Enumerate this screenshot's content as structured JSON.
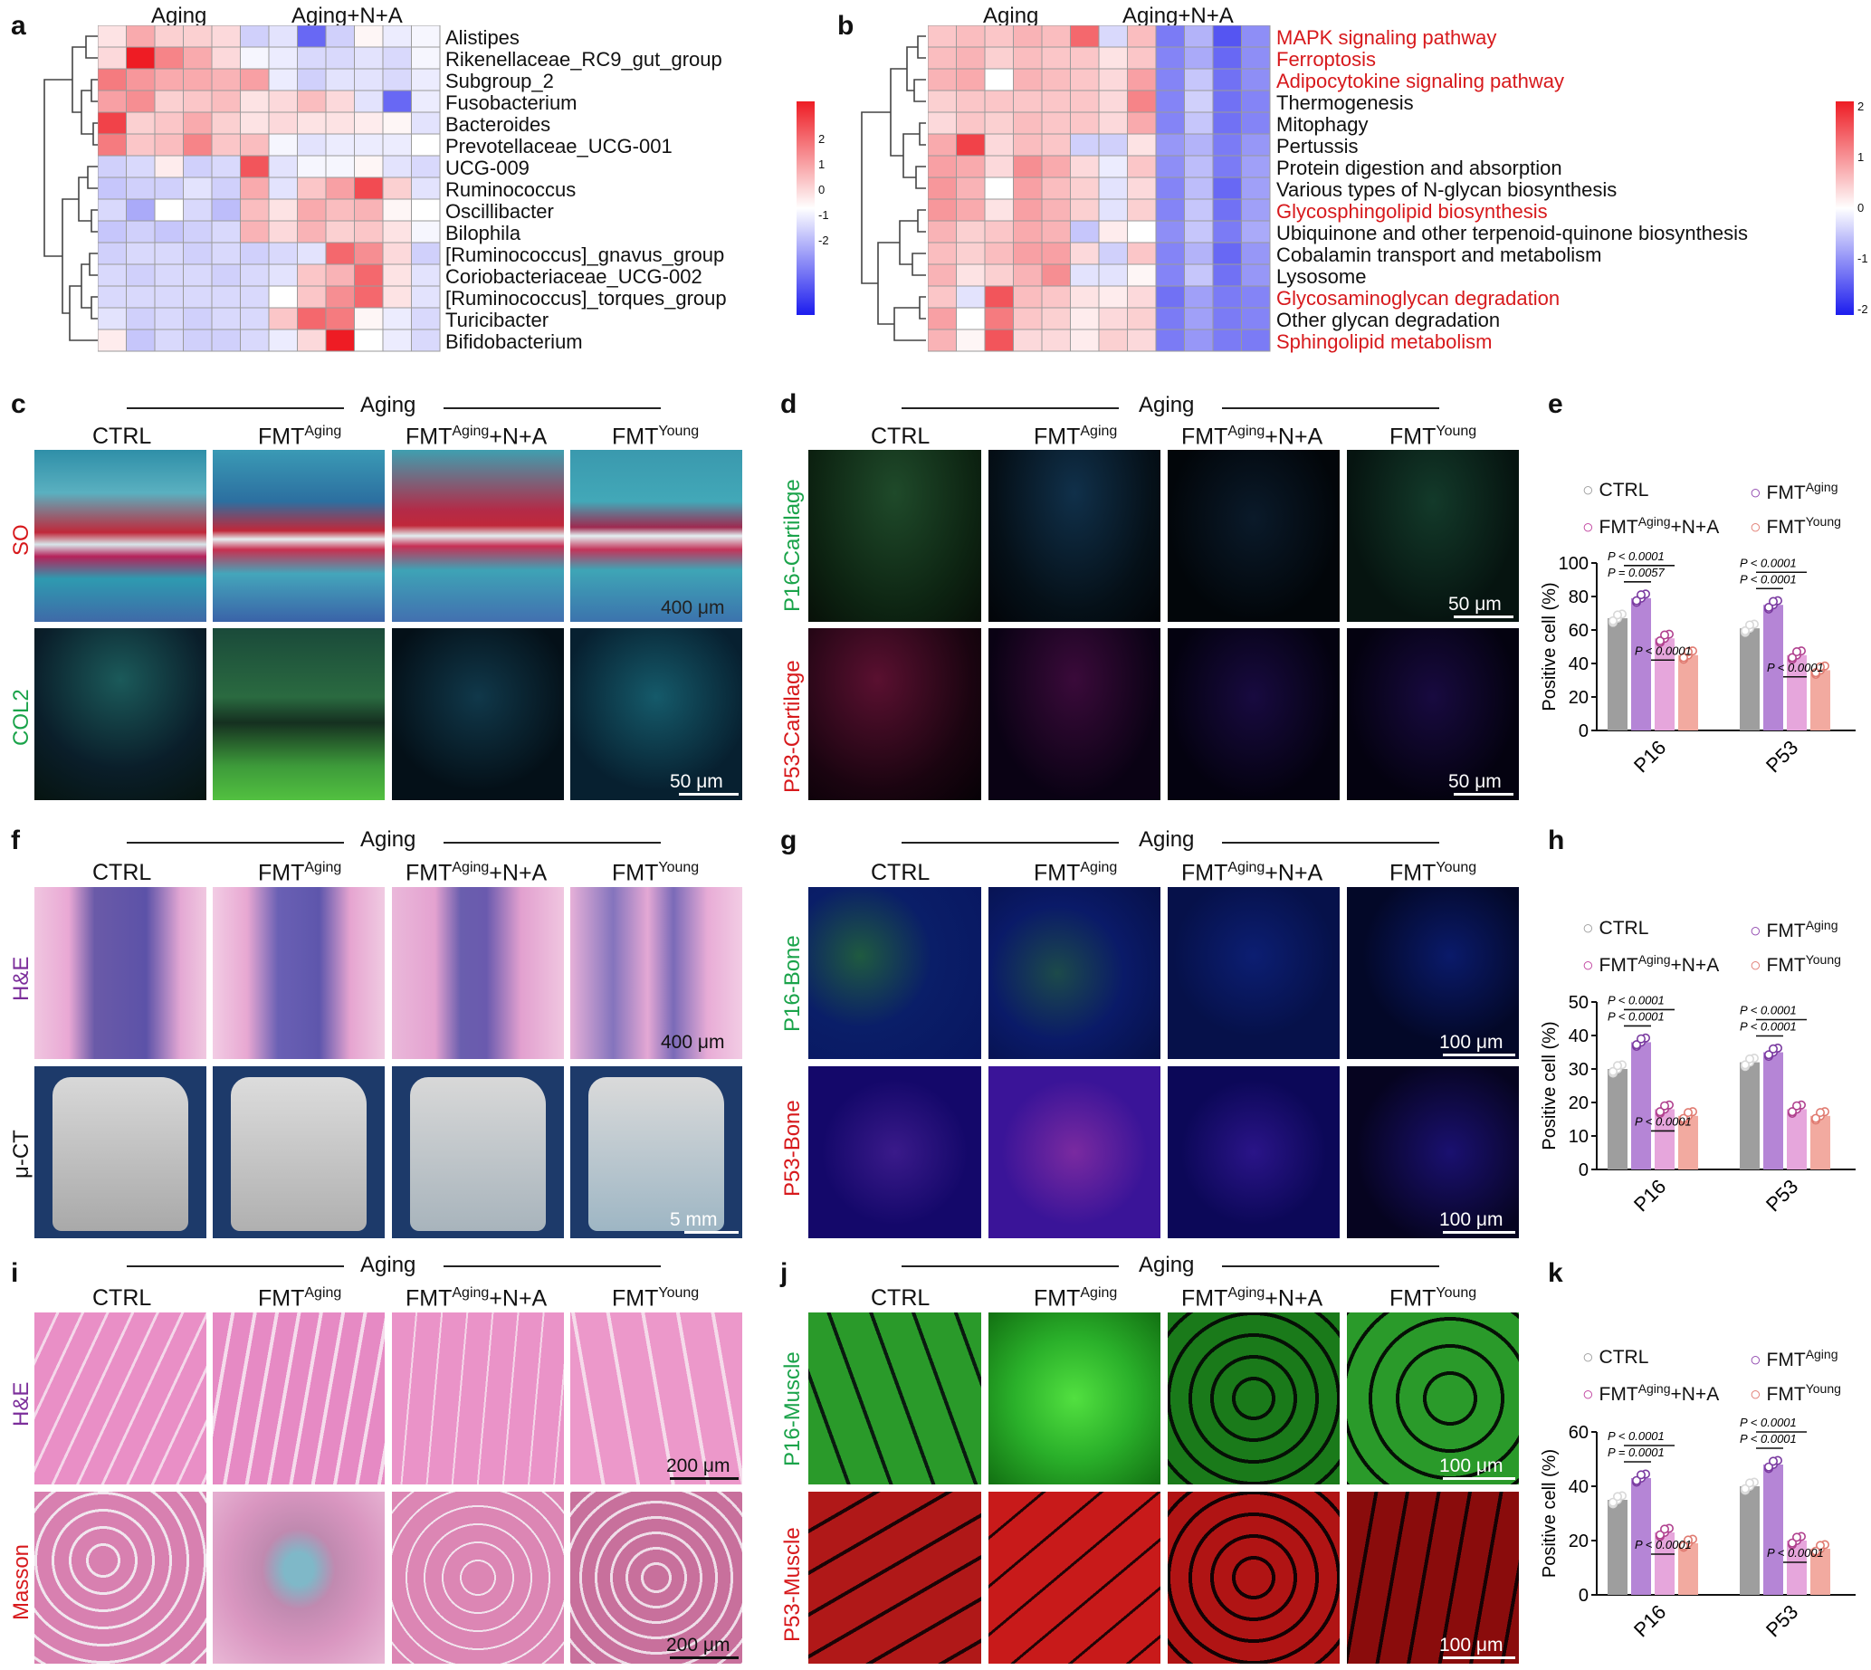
{
  "panel_labels": [
    "a",
    "b",
    "c",
    "d",
    "e",
    "f",
    "g",
    "h",
    "i",
    "j",
    "k"
  ],
  "heatmap_a": {
    "groups": [
      "Aging",
      "Aging+N+A"
    ],
    "rows": [
      "Alistipes",
      "Rikenellaceae_RC9_gut_group",
      "Subgroup_2",
      "Fusobacterium",
      "Bacteroides",
      "Prevotellaceae_UCG-001",
      "UCG-009",
      "Ruminococcus",
      "Oscillibacter",
      "Bilophila",
      "[Ruminococcus]_gnavus_group",
      "Coriobacteriaceae_UCG-002",
      "[Ruminococcus]_torques_group",
      "Turicibacter",
      "Bifidobacterium"
    ],
    "values": [
      [
        0.3,
        0.9,
        0.5,
        0.5,
        0.4,
        -0.5,
        -0.3,
        -1.6,
        -0.5,
        0.1,
        -0.2,
        -0.1
      ],
      [
        0.4,
        2.4,
        1.3,
        0.9,
        0.4,
        -0.1,
        -0.2,
        -0.4,
        -0.4,
        -0.3,
        -0.4,
        -0.1
      ],
      [
        1.4,
        1.1,
        0.9,
        0.9,
        0.8,
        1.0,
        -0.2,
        -0.5,
        -0.3,
        -0.3,
        -0.4,
        -0.2
      ],
      [
        1.0,
        1.2,
        0.5,
        0.6,
        0.7,
        0.3,
        0.4,
        0.7,
        0.4,
        -0.3,
        -1.6,
        -0.2
      ],
      [
        2.0,
        0.5,
        0.6,
        0.9,
        0.5,
        0.3,
        0.4,
        0.3,
        0.3,
        0.2,
        0.1,
        -0.3
      ],
      [
        1.4,
        0.6,
        0.7,
        1.3,
        0.6,
        0.7,
        -0.1,
        -0.3,
        -0.2,
        -0.2,
        -0.2,
        0.0
      ],
      [
        -0.5,
        -0.4,
        0.2,
        -0.5,
        -0.4,
        1.8,
        -0.3,
        -0.1,
        -0.1,
        0.1,
        -0.3,
        -0.4
      ],
      [
        -0.6,
        -0.5,
        -0.5,
        -0.3,
        -0.5,
        0.9,
        -0.3,
        0.6,
        1.0,
        1.9,
        0.5,
        -0.3
      ],
      [
        -0.4,
        -0.9,
        0.0,
        -0.4,
        -0.7,
        0.7,
        0.3,
        0.9,
        0.7,
        0.8,
        0.1,
        0.0
      ],
      [
        -0.6,
        -0.5,
        -0.6,
        -0.5,
        -0.4,
        0.8,
        0.4,
        0.8,
        0.5,
        0.6,
        0.3,
        -0.1
      ],
      [
        -0.5,
        -0.4,
        -0.4,
        -0.5,
        -0.4,
        -0.5,
        -0.4,
        -0.3,
        1.6,
        1.2,
        0.4,
        -0.5
      ],
      [
        -0.4,
        -0.5,
        -0.4,
        -0.4,
        -0.5,
        -0.4,
        -0.3,
        0.6,
        0.8,
        1.6,
        0.3,
        -0.3
      ],
      [
        -0.4,
        -0.4,
        -0.4,
        -0.4,
        -0.4,
        -0.4,
        0.0,
        0.6,
        1.2,
        1.6,
        0.3,
        -0.3
      ],
      [
        -0.3,
        -0.5,
        -0.4,
        -0.5,
        -0.4,
        -0.4,
        0.6,
        1.6,
        1.4,
        0.1,
        -0.2,
        -0.4
      ],
      [
        0.2,
        -0.6,
        -0.4,
        -0.5,
        -0.5,
        -0.4,
        -0.2,
        0.4,
        2.4,
        0.0,
        -0.2,
        -0.4
      ]
    ],
    "colorbar_ticks": [
      "2",
      "1",
      "0",
      "-1",
      "-2"
    ]
  },
  "heatmap_b": {
    "groups": [
      "Aging",
      "Aging+N+A"
    ],
    "rows": [
      {
        "label": "MAPK signaling pathway",
        "red": true
      },
      {
        "label": "Ferroptosis",
        "red": true
      },
      {
        "label": "Adipocytokine signaling pathway",
        "red": true
      },
      {
        "label": "Thermogenesis",
        "red": false
      },
      {
        "label": "Mitophagy",
        "red": false
      },
      {
        "label": "Pertussis",
        "red": false
      },
      {
        "label": "Protein digestion and absorption",
        "red": false
      },
      {
        "label": "Various types of N-glycan biosynthesis",
        "red": false
      },
      {
        "label": "Glycosphingolipid biosynthesis",
        "red": true
      },
      {
        "label": "Ubiquinone and other terpenoid-quinone biosynthesis",
        "red": false
      },
      {
        "label": "Cobalamin transport and metabolism",
        "red": false
      },
      {
        "label": "Lysosome",
        "red": false
      },
      {
        "label": "Glycosaminoglycan degradation",
        "red": true
      },
      {
        "label": "Other glycan degradation",
        "red": false
      },
      {
        "label": "Sphingolipid metabolism",
        "red": true
      }
    ],
    "values": [
      [
        0.6,
        0.7,
        0.6,
        0.8,
        0.7,
        1.6,
        -0.4,
        0.7,
        -1.4,
        -0.8,
        -1.8,
        -1.2
      ],
      [
        0.7,
        0.8,
        0.5,
        0.7,
        0.6,
        0.6,
        0.3,
        0.6,
        -1.3,
        -0.9,
        -1.6,
        -1.2
      ],
      [
        0.8,
        0.9,
        0.0,
        0.8,
        0.7,
        0.6,
        0.4,
        1.0,
        -1.3,
        -0.6,
        -1.5,
        -1.2
      ],
      [
        0.5,
        0.6,
        0.6,
        0.6,
        0.6,
        0.6,
        0.4,
        1.3,
        -1.3,
        -0.5,
        -1.5,
        -1.3
      ],
      [
        0.4,
        0.6,
        0.5,
        0.7,
        0.6,
        0.6,
        0.4,
        0.9,
        -1.3,
        -0.6,
        -1.5,
        -1.3
      ],
      [
        0.9,
        2.0,
        0.4,
        0.7,
        0.6,
        -0.5,
        -0.5,
        0.3,
        -1.1,
        -0.8,
        -1.4,
        -1.1
      ],
      [
        1.0,
        0.9,
        0.4,
        1.2,
        0.9,
        0.4,
        -0.2,
        0.6,
        -1.2,
        -0.7,
        -1.4,
        -1.0
      ],
      [
        1.1,
        0.8,
        0.0,
        1.0,
        0.7,
        0.5,
        -0.3,
        0.4,
        -1.3,
        -0.7,
        -1.6,
        -1.0
      ],
      [
        1.1,
        0.9,
        0.3,
        1.0,
        0.8,
        0.5,
        -0.3,
        0.5,
        -1.3,
        -0.6,
        -1.5,
        -1.0
      ],
      [
        0.8,
        0.5,
        0.6,
        0.9,
        0.8,
        -0.6,
        0.2,
        0.0,
        -1.2,
        -0.6,
        -1.4,
        -0.9
      ],
      [
        0.7,
        0.5,
        0.7,
        1.0,
        1.0,
        0.4,
        -0.5,
        0.6,
        -1.3,
        -0.8,
        -1.6,
        -1.1
      ],
      [
        0.8,
        0.3,
        0.5,
        0.8,
        1.2,
        -0.3,
        -0.3,
        0.1,
        -1.3,
        -0.6,
        -1.5,
        -1.1
      ],
      [
        0.6,
        -0.3,
        1.8,
        0.7,
        0.6,
        0.3,
        0.2,
        0.4,
        -1.5,
        -1.0,
        -1.4,
        -1.3
      ],
      [
        1.0,
        0.0,
        1.4,
        0.6,
        0.5,
        0.2,
        0.4,
        0.5,
        -1.4,
        -1.0,
        -1.4,
        -1.3
      ],
      [
        0.8,
        0.1,
        1.8,
        0.4,
        0.4,
        0.2,
        0.5,
        0.4,
        -1.4,
        -1.1,
        -1.4,
        -1.4
      ]
    ],
    "colorbar_ticks": [
      "2",
      "1",
      "0",
      "-1",
      "-2"
    ]
  },
  "group_header": "Aging",
  "columns": {
    "ctrl": "CTRL",
    "fmt_base": "FMT",
    "aging_sup": "Aging",
    "young_sup": "Young",
    "na_suffix": "+N+A"
  },
  "side_labels": {
    "c_top": "SO",
    "c_bottom": "COL2",
    "d_top": "P16-Cartilage",
    "d_bottom": "P53-Cartilage",
    "f_top": "H&E",
    "f_bottom": "μ-CT",
    "g_top": "P16-Bone",
    "g_bottom": "P53-Bone",
    "i_top": "H&E",
    "i_bottom": "Masson",
    "j_top": "P16-Muscle",
    "j_bottom": "P53-Muscle"
  },
  "scale_bars": {
    "c_top": "400 μm",
    "c_bottom": "50 μm",
    "d_top": "50 μm",
    "d_bottom": "50 μm",
    "f_top": "400 μm",
    "f_bottom": "5 mm",
    "g_top": "100 μm",
    "g_bottom": "100 μm",
    "i_top": "200 μm",
    "i_bottom": "200 μm",
    "j_top": "100 μm",
    "j_bottom": "100 μm"
  },
  "bar_legend": {
    "ctrl": "CTRL",
    "fmt": "FMT",
    "aging_sup": "Aging",
    "na": "+N+A",
    "young_sup": "Young"
  },
  "chart_data": [
    {
      "panel": "e",
      "type": "bar",
      "ylabel": "Positive cell (%)",
      "ylim": [
        0,
        100
      ],
      "yticks": [
        0,
        20,
        40,
        60,
        80,
        100
      ],
      "categories": [
        "P16",
        "P53"
      ],
      "series": [
        {
          "name": "CTRL",
          "values": [
            67,
            61
          ]
        },
        {
          "name": "FMT Aging",
          "values": [
            79,
            75
          ]
        },
        {
          "name": "FMT Aging+N+A",
          "values": [
            55,
            45
          ]
        },
        {
          "name": "FMT Young",
          "values": [
            45,
            36
          ]
        }
      ],
      "annotations": [
        "P < 0.0001",
        "P = 0.0057",
        "P < 0.0001",
        "P < 0.0001",
        "P < 0.0001",
        "P < 0.0001"
      ]
    },
    {
      "panel": "h",
      "type": "bar",
      "ylabel": "Positive cell (%)",
      "ylim": [
        0,
        50
      ],
      "yticks": [
        0,
        10,
        20,
        30,
        40,
        50
      ],
      "categories": [
        "P16",
        "P53"
      ],
      "series": [
        {
          "name": "CTRL",
          "values": [
            30,
            32
          ]
        },
        {
          "name": "FMT Aging",
          "values": [
            38,
            35
          ]
        },
        {
          "name": "FMT Aging+N+A",
          "values": [
            18,
            18
          ]
        },
        {
          "name": "FMT Young",
          "values": [
            16,
            16
          ]
        }
      ],
      "annotations": [
        "P < 0.0001",
        "P < 0.0001",
        "P < 0.0001",
        "P < 0.0001",
        "P < 0.0001"
      ]
    },
    {
      "panel": "k",
      "type": "bar",
      "ylabel": "Positive cell (%)",
      "ylim": [
        0,
        60
      ],
      "yticks": [
        0,
        20,
        40,
        60
      ],
      "categories": [
        "P16",
        "P53"
      ],
      "series": [
        {
          "name": "CTRL",
          "values": [
            35,
            40
          ]
        },
        {
          "name": "FMT Aging",
          "values": [
            43,
            48
          ]
        },
        {
          "name": "FMT Aging+N+A",
          "values": [
            23,
            20
          ]
        },
        {
          "name": "FMT Young",
          "values": [
            19,
            17
          ]
        }
      ],
      "annotations": [
        "P < 0.0001",
        "P = 0.0001",
        "P < 0.0001",
        "P < 0.0001",
        "P < 0.0001",
        "P < 0.0001"
      ]
    }
  ],
  "colors": {
    "ctrl": "#9e9e9e",
    "aging": "#b585d6",
    "na": "#e6a6dc",
    "young": "#f2aaa0",
    "heat_red": "#ee1c24",
    "heat_blue": "#1c1cee",
    "label_red": "#d7191c"
  }
}
